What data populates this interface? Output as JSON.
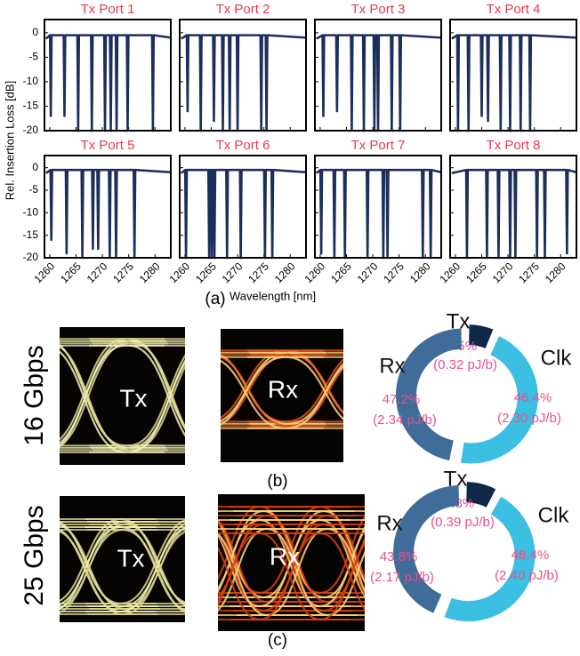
{
  "figure": {
    "y_label": "Rel. Insertion Loss [dB]",
    "panel_a": "(a)",
    "x_label": "Wavelength [nm]",
    "rows": [
      {
        "rate": "16 Gbps",
        "tx_eye": "Tx",
        "rx_eye": "Rx",
        "panel": "(b)"
      },
      {
        "rate": "25 Gbps",
        "tx_eye": "Tx",
        "rx_eye": "Rx",
        "panel": "(c)"
      }
    ]
  },
  "chart_data": [
    {
      "type": "line",
      "title": "Tx Port 1",
      "color": "#1c2f5c",
      "xlim": [
        1259,
        1283
      ],
      "ylim": [
        -20,
        2.7
      ],
      "xticks": [
        1260,
        1265,
        1270,
        1275,
        1280
      ],
      "yticks": [
        0,
        -5,
        -10,
        -15,
        -20
      ],
      "x": [
        1259.3,
        1260.05,
        1260.2,
        1260.35,
        1262.65,
        1262.8,
        1262.95,
        1265.25,
        1265.4,
        1265.55,
        1267.85,
        1268,
        1268.15,
        1270.35,
        1270.5,
        1270.65,
        1271.45,
        1271.6,
        1271.75,
        1272.55,
        1272.7,
        1272.85,
        1274.65,
        1274.8,
        1274.95,
        1279.45,
        1279.6,
        1279.75,
        1283
      ],
      "values": [
        -1.2,
        -0.5,
        -17,
        -0.5,
        -0.5,
        -17,
        -0.5,
        -0.5,
        -20,
        -0.5,
        -0.5,
        -20,
        -0.5,
        -0.5,
        -20,
        -0.5,
        -0.5,
        -20,
        -0.5,
        -0.5,
        -20,
        -0.5,
        -0.5,
        -20,
        -0.5,
        -0.5,
        -20,
        -0.5,
        -1.0
      ]
    },
    {
      "type": "line",
      "title": "Tx Port 2",
      "color": "#1c2f5c",
      "xlim": [
        1259,
        1283
      ],
      "ylim": [
        -20,
        2.7
      ],
      "xticks": [
        1260,
        1265,
        1270,
        1275,
        1280
      ],
      "yticks": [
        0,
        -5,
        -10,
        -15,
        -20
      ],
      "x": [
        1259.3,
        1260.35,
        1260.5,
        1260.65,
        1262.85,
        1263,
        1263.15,
        1265.35,
        1265.5,
        1265.65,
        1267.05,
        1267.2,
        1267.35,
        1268.35,
        1268.5,
        1268.65,
        1269.85,
        1270,
        1270.15,
        1274.35,
        1274.5,
        1274.65,
        1275.35,
        1275.5,
        1275.65,
        1283
      ],
      "values": [
        -1.2,
        -0.5,
        -16,
        -0.5,
        -0.5,
        -20,
        -0.5,
        -0.5,
        -18,
        -0.5,
        -0.5,
        -20,
        -0.5,
        -0.5,
        -20,
        -0.5,
        -0.5,
        -20,
        -0.5,
        -0.5,
        -20,
        -0.5,
        -0.5,
        -20,
        -0.5,
        -1.0
      ]
    },
    {
      "type": "line",
      "title": "Tx Port 3",
      "color": "#1c2f5c",
      "xlim": [
        1259,
        1283
      ],
      "ylim": [
        -20,
        2.7
      ],
      "xticks": [
        1260,
        1265,
        1270,
        1275,
        1280
      ],
      "yticks": [
        0,
        -5,
        -10,
        -15,
        -20
      ],
      "x": [
        1259.3,
        1260.45,
        1260.6,
        1260.75,
        1263.05,
        1263.2,
        1263.35,
        1265.85,
        1266,
        1266.15,
        1268.15,
        1268.3,
        1268.45,
        1270.15,
        1270.3,
        1270.45,
        1270.85,
        1271,
        1271.15,
        1273.45,
        1273.6,
        1273.75,
        1275.05,
        1275.2,
        1275.35,
        1283
      ],
      "values": [
        -1.2,
        -0.5,
        -17,
        -0.5,
        -0.5,
        -16,
        -0.5,
        -0.5,
        -20,
        -0.5,
        -0.5,
        -20,
        -0.5,
        -0.5,
        -20,
        -0.5,
        -0.5,
        -20,
        -0.5,
        -0.5,
        -20,
        -0.5,
        -0.5,
        -20,
        -0.5,
        -1.0
      ]
    },
    {
      "type": "line",
      "title": "Tx Port 4",
      "color": "#1c2f5c",
      "xlim": [
        1259,
        1283
      ],
      "ylim": [
        -20,
        2.7
      ],
      "xticks": [
        1260,
        1265,
        1270,
        1275,
        1280
      ],
      "yticks": [
        0,
        -5,
        -10,
        -15,
        -20
      ],
      "x": [
        1259.3,
        1260.35,
        1260.5,
        1260.65,
        1262.35,
        1262.5,
        1262.65,
        1264.85,
        1265,
        1265.15,
        1266.05,
        1266.2,
        1266.35,
        1268.45,
        1268.6,
        1268.75,
        1270.25,
        1270.4,
        1270.55,
        1272.25,
        1272.4,
        1272.55,
        1274.05,
        1274.2,
        1274.35,
        1283
      ],
      "values": [
        -1.2,
        -0.5,
        -20,
        -0.5,
        -0.5,
        -20,
        -0.5,
        -0.5,
        -17,
        -0.5,
        -0.5,
        -18,
        -0.5,
        -0.5,
        -20,
        -0.5,
        -0.5,
        -20,
        -0.5,
        -0.5,
        -20,
        -0.5,
        -0.5,
        -20,
        -0.5,
        -1.0
      ]
    },
    {
      "type": "line",
      "title": "Tx Port 5",
      "color": "#1c2f5c",
      "xlim": [
        1259,
        1283
      ],
      "ylim": [
        -20,
        2.7
      ],
      "xticks": [
        1260,
        1265,
        1270,
        1275,
        1280
      ],
      "yticks": [
        0,
        -5,
        -10,
        -15,
        -20
      ],
      "x": [
        1259.3,
        1260.15,
        1260.3,
        1260.45,
        1263.05,
        1263.2,
        1263.35,
        1266.05,
        1266.2,
        1266.35,
        1268.05,
        1268.2,
        1268.35,
        1269.05,
        1269.2,
        1269.35,
        1271.25,
        1271.4,
        1271.55,
        1272.45,
        1272.6,
        1272.75,
        1275.95,
        1276.1,
        1276.25,
        1283
      ],
      "values": [
        -1.2,
        -0.5,
        -16,
        -0.5,
        -0.5,
        -19,
        -0.5,
        -0.5,
        -20,
        -0.5,
        -0.5,
        -18,
        -0.5,
        -0.5,
        -18,
        -0.5,
        -0.5,
        -20,
        -0.5,
        -0.5,
        -20,
        -0.5,
        -0.5,
        -20,
        -0.5,
        -1.0
      ]
    },
    {
      "type": "line",
      "title": "Tx Port 6",
      "color": "#1c2f5c",
      "xlim": [
        1259,
        1283
      ],
      "ylim": [
        -20,
        2.7
      ],
      "xticks": [
        1260,
        1265,
        1270,
        1275,
        1280
      ],
      "yticks": [
        0,
        -5,
        -10,
        -15,
        -20
      ],
      "x": [
        1259.3,
        1260.05,
        1260.2,
        1260.35,
        1264.45,
        1264.6,
        1264.75,
        1264.95,
        1265.1,
        1265.25,
        1265.45,
        1265.6,
        1265.75,
        1267.85,
        1268,
        1268.15,
        1270.45,
        1270.6,
        1270.75,
        1275.05,
        1275.2,
        1275.35,
        1276.45,
        1276.6,
        1276.75,
        1283
      ],
      "values": [
        -1.2,
        -0.5,
        -20,
        -0.5,
        -0.5,
        -20,
        -0.5,
        -0.5,
        -20,
        -0.5,
        -0.5,
        -20,
        -0.5,
        -0.5,
        -20,
        -0.5,
        -0.5,
        -20,
        -0.5,
        -0.5,
        -20,
        -0.5,
        -0.5,
        -20,
        -0.5,
        -1.0
      ]
    },
    {
      "type": "line",
      "title": "Tx Port 7",
      "color": "#1c2f5c",
      "xlim": [
        1259,
        1283
      ],
      "ylim": [
        -20,
        2.7
      ],
      "xticks": [
        1260,
        1265,
        1270,
        1275,
        1280
      ],
      "yticks": [
        0,
        -5,
        -10,
        -15,
        -20
      ],
      "x": [
        1259.3,
        1260.05,
        1260.2,
        1260.35,
        1262.55,
        1262.7,
        1262.85,
        1264.55,
        1264.7,
        1264.85,
        1268.85,
        1269,
        1269.15,
        1271.85,
        1272,
        1272.15,
        1272.65,
        1272.8,
        1272.95,
        1279.35,
        1279.5,
        1279.65,
        1280.85,
        1281,
        1281.15,
        1283
      ],
      "values": [
        -1.2,
        -0.5,
        -19,
        -0.5,
        -0.5,
        -20,
        -0.5,
        -0.5,
        -20,
        -0.5,
        -0.5,
        -20,
        -0.5,
        -0.5,
        -20,
        -0.5,
        -0.5,
        -20,
        -0.5,
        -0.5,
        -20,
        -0.5,
        -0.5,
        -20,
        -0.5,
        -1.0
      ]
    },
    {
      "type": "line",
      "title": "Tx Port 8",
      "color": "#1c2f5c",
      "xlim": [
        1259,
        1283
      ],
      "ylim": [
        -20,
        2.7
      ],
      "xticks": [
        1260,
        1265,
        1270,
        1275,
        1280
      ],
      "yticks": [
        0,
        -5,
        -10,
        -15,
        -20
      ],
      "x": [
        1259.3,
        1262.05,
        1262.2,
        1262.35,
        1265.85,
        1266,
        1266.15,
        1268.05,
        1268.2,
        1268.35,
        1270.25,
        1270.4,
        1270.55,
        1271.25,
        1271.4,
        1271.55,
        1275.35,
        1275.5,
        1275.65,
        1276.85,
        1277,
        1277.15,
        1281.05,
        1281.2,
        1281.35,
        1283
      ],
      "values": [
        -1.2,
        -0.5,
        -20,
        -0.5,
        -0.5,
        -20,
        -0.5,
        -0.5,
        -20,
        -0.5,
        -0.5,
        -20,
        -0.5,
        -0.5,
        -20,
        -0.5,
        -0.5,
        -20,
        -0.5,
        -0.5,
        -20,
        -0.5,
        -0.5,
        -19,
        -0.5,
        -1.0
      ]
    },
    {
      "type": "donut",
      "categories": [
        "Tx",
        "Clk",
        "Rx"
      ],
      "values": [
        6.5,
        46.4,
        47.2
      ],
      "value_labels": [
        "6.5%",
        "46.4%",
        "47.2%"
      ],
      "energy_labels": [
        "(0.32 pJ/b)",
        "(2.30 pJ/b)",
        "(2.34 pJ/b)"
      ],
      "colors": [
        "#0f2847",
        "#3bbfe2",
        "#3f6c98"
      ]
    },
    {
      "type": "donut",
      "categories": [
        "Tx",
        "Clk",
        "Rx"
      ],
      "values": [
        7.8,
        48.4,
        43.8
      ],
      "value_labels": [
        "7.8%",
        "48.4%",
        "43.8%"
      ],
      "energy_labels": [
        "(0.39 pJ/b)",
        "(2.40 pJ/b)",
        "(2.17 pJ/b)"
      ],
      "colors": [
        "#0f2847",
        "#3bbfe2",
        "#3f6c98"
      ]
    }
  ]
}
